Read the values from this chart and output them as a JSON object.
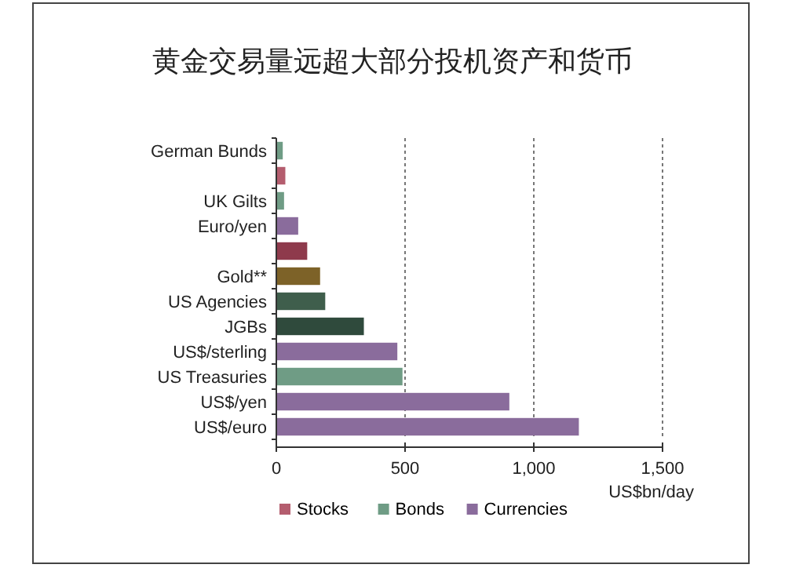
{
  "chart_data": {
    "type": "bar",
    "orientation": "horizontal",
    "title": "黄金交易量远超大部分投机资产和货币",
    "xlabel": "US$bn/day",
    "categories": [
      "German Bunds",
      null,
      "UK Gilts",
      "Euro/yen",
      null,
      "Gold**",
      "US Agencies",
      "JGBs",
      "US$/sterling",
      "US Treasuries",
      "US$/yen",
      "US$/euro"
    ],
    "series": [
      {
        "name": "Stocks",
        "color": "#b45d6e",
        "colors": [
          null,
          "#b45d6e",
          null,
          null,
          "#8e3a4c",
          null,
          null,
          null,
          null,
          null,
          null,
          null
        ],
        "values": [
          null,
          35,
          null,
          null,
          120,
          null,
          null,
          null,
          null,
          null,
          null,
          null
        ]
      },
      {
        "name": "Bonds",
        "color": "#6f9c85",
        "colors": [
          "#6f9c85",
          null,
          "#6f9c85",
          null,
          null,
          null,
          "#3f5e4c",
          "#2f4a3c",
          null,
          "#6f9c85",
          null,
          null
        ],
        "values": [
          25,
          null,
          30,
          null,
          null,
          null,
          190,
          340,
          null,
          490,
          null,
          null
        ]
      },
      {
        "name": "Currencies",
        "color": "#8a6c9c",
        "colors": [
          null,
          null,
          null,
          "#8a6c9c",
          null,
          null,
          null,
          null,
          "#8a6c9c",
          null,
          "#8a6c9c",
          "#8a6c9c"
        ],
        "values": [
          null,
          null,
          null,
          85,
          null,
          null,
          null,
          null,
          470,
          null,
          905,
          1175
        ]
      },
      {
        "color": "#7d6228",
        "values": [
          null,
          null,
          null,
          null,
          null,
          170,
          null,
          null,
          null,
          null,
          null,
          null
        ]
      }
    ],
    "xlim": [
      0,
      1500
    ],
    "xticks": [
      0,
      500,
      {
        "value": 1000,
        "label": "1,000"
      },
      {
        "value": 1500,
        "label": "1,500"
      }
    ],
    "grid": "x",
    "legend": "bottom"
  }
}
